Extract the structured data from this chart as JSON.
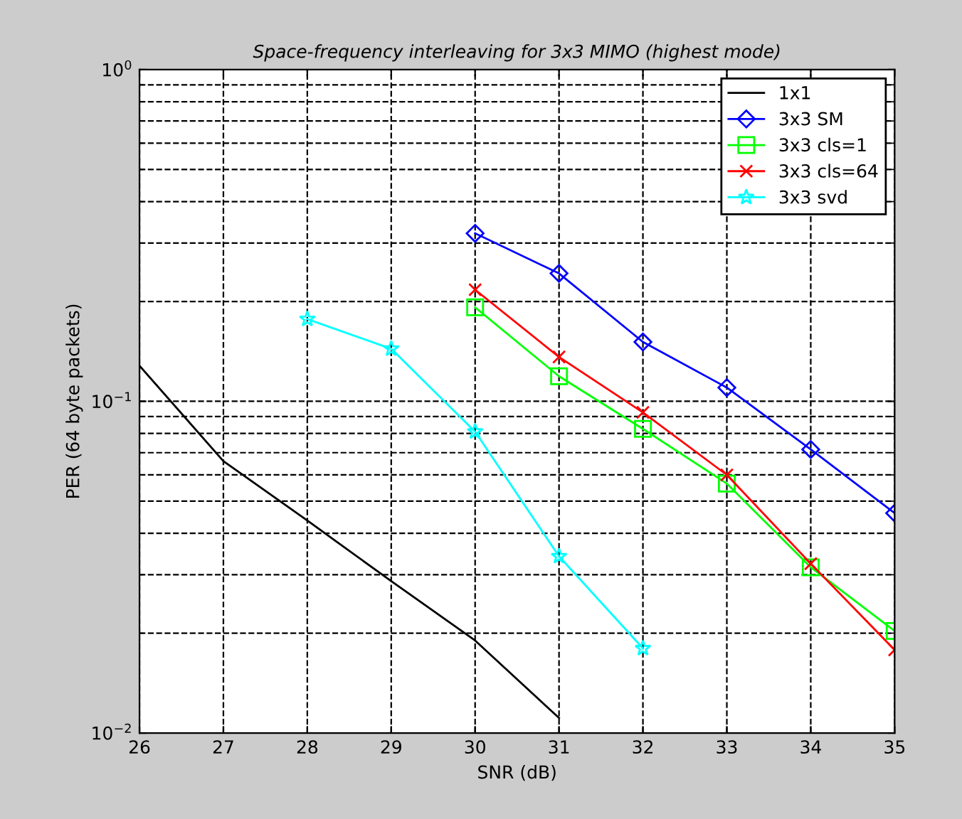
{
  "chart_data": {
    "type": "line",
    "title": "Space-frequency interleaving for 3x3 MIMO (highest mode)",
    "xlabel": "SNR (dB)",
    "ylabel": "PER (64 byte packets)",
    "log": "y",
    "grid": true,
    "legend": "top right",
    "line_style": "solid",
    "xlim": [
      26,
      35
    ],
    "xticks": [
      26,
      27,
      28,
      29,
      30,
      31,
      32,
      33,
      34,
      35
    ],
    "ylim": [
      0.01,
      1
    ],
    "yticks": [
      {
        "value": 0.01,
        "label": "10$^{−2}$"
      },
      {
        "value": 0.1,
        "label": "10$^{−1}$"
      },
      {
        "value": 1,
        "label": "10$^{0}$"
      }
    ],
    "series": [
      {
        "name": "1x1",
        "color": "#000000",
        "marker": "none",
        "x": [
          26,
          27,
          28,
          29,
          30,
          31
        ],
        "values": [
          0.128,
          0.066,
          0.0437,
          0.0287,
          0.019,
          0.0111
        ]
      },
      {
        "name": "3x3 SM",
        "color": "#0000ff",
        "marker": "diamond",
        "x": [
          30,
          31,
          32,
          33,
          34,
          35
        ],
        "values": [
          0.321,
          0.243,
          0.151,
          0.11,
          0.0716,
          0.046
        ]
      },
      {
        "name": "3x3 cls=1",
        "color": "#00ff00",
        "marker": "square",
        "x": [
          30,
          31,
          32,
          33,
          34,
          35
        ],
        "values": [
          0.192,
          0.119,
          0.0826,
          0.0565,
          0.0316,
          0.0203
        ]
      },
      {
        "name": "3x3 cls=64",
        "color": "#ff0000",
        "marker": "cross",
        "x": [
          30,
          31,
          32,
          33,
          34,
          35
        ],
        "values": [
          0.217,
          0.136,
          0.0926,
          0.06,
          0.0324,
          0.0178
        ]
      },
      {
        "name": "3x3 svd",
        "color": "#00ffff",
        "marker": "star",
        "x": [
          28,
          29,
          30,
          31,
          32
        ],
        "values": [
          0.177,
          0.144,
          0.081,
          0.0341,
          0.018
        ]
      }
    ]
  }
}
